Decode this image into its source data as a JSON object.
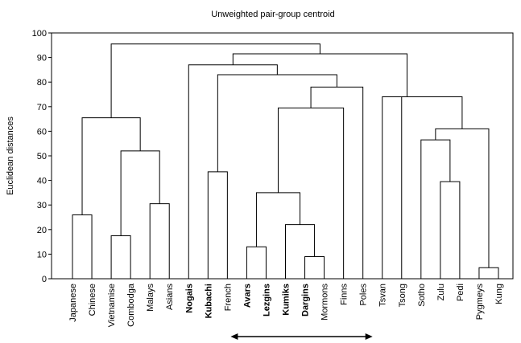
{
  "chart_data": {
    "type": "dendrogram",
    "title": "Unweighted pair-group centroid",
    "ylabel": "Euclidean distances",
    "xlabel": "",
    "ylim": [
      0,
      100
    ],
    "yticks": [
      0,
      10,
      20,
      30,
      40,
      50,
      60,
      70,
      80,
      90,
      100
    ],
    "grid": false,
    "leaves": [
      {
        "label": "Japanese",
        "bold": false
      },
      {
        "label": "Chinese",
        "bold": false
      },
      {
        "label": "Vietnamise",
        "bold": false
      },
      {
        "label": "Combodga",
        "bold": false
      },
      {
        "label": "Malays",
        "bold": false
      },
      {
        "label": "Asians",
        "bold": false
      },
      {
        "label": "Nogais",
        "bold": true
      },
      {
        "label": "Kubachi",
        "bold": true
      },
      {
        "label": "French",
        "bold": false
      },
      {
        "label": "Avars",
        "bold": true
      },
      {
        "label": "Lezgins",
        "bold": true
      },
      {
        "label": "Kumiks",
        "bold": true
      },
      {
        "label": "Dargins",
        "bold": true
      },
      {
        "label": "Mormons",
        "bold": false
      },
      {
        "label": "Finns",
        "bold": false
      },
      {
        "label": "Poles",
        "bold": false
      },
      {
        "label": "Tsvan",
        "bold": false
      },
      {
        "label": "Tsong",
        "bold": false
      },
      {
        "label": "Sotho",
        "bold": false
      },
      {
        "label": "Zulu",
        "bold": false
      },
      {
        "label": "Pedi",
        "bold": false
      },
      {
        "label": "Pygmeys",
        "bold": false
      },
      {
        "label": "Kung",
        "bold": false
      }
    ],
    "merges": [
      {
        "id": "A",
        "left": "Japanese",
        "right": "Chinese",
        "height": 26
      },
      {
        "id": "B",
        "left": "Vietnamise",
        "right": "Combodga",
        "height": 17.5
      },
      {
        "id": "C",
        "left": "Malays",
        "right": "Asians",
        "height": 30.5
      },
      {
        "id": "D",
        "left": "B",
        "right": "C",
        "height": 52
      },
      {
        "id": "E",
        "left": "A",
        "right": "D",
        "height": 65.5
      },
      {
        "id": "F",
        "left": "Kubachi",
        "right": "French",
        "height": 43.5
      },
      {
        "id": "G",
        "left": "Avars",
        "right": "Lezgins",
        "height": 13
      },
      {
        "id": "H",
        "left": "Dargins",
        "right": "Mormons",
        "height": 9
      },
      {
        "id": "I",
        "left": "Kumiks",
        "right": "H",
        "height": 22
      },
      {
        "id": "J",
        "left": "G",
        "right": "I",
        "height": 35
      },
      {
        "id": "K",
        "left": "J",
        "right": "Finns",
        "height": 69.5
      },
      {
        "id": "L",
        "left": "K",
        "right": "Poles",
        "height": 78
      },
      {
        "id": "M",
        "left": "F",
        "right": "L",
        "height": 83
      },
      {
        "id": "N",
        "left": "Nogais",
        "right": "M",
        "height": 87
      },
      {
        "id": "O",
        "left": "Zulu",
        "right": "Pedi",
        "height": 39.5
      },
      {
        "id": "P",
        "left": "Sotho",
        "right": "O",
        "height": 56.5
      },
      {
        "id": "Q",
        "left": "Pygmeys",
        "right": "Kung",
        "height": 4.5
      },
      {
        "id": "R",
        "left": "P",
        "right": "Q",
        "height": 61
      },
      {
        "id": "S",
        "left": "Tsong",
        "right": "R",
        "height": 74
      },
      {
        "id": "T",
        "left": "Tsvan",
        "right": "S",
        "height": 74
      },
      {
        "id": "U",
        "left": "N",
        "right": "T",
        "height": 91.5
      },
      {
        "id": "V",
        "left": "E",
        "right": "U",
        "height": 95.5
      }
    ],
    "annotation": {
      "type": "double-arrow",
      "from_leaf": "Avars",
      "to_leaf": "Poles"
    }
  }
}
